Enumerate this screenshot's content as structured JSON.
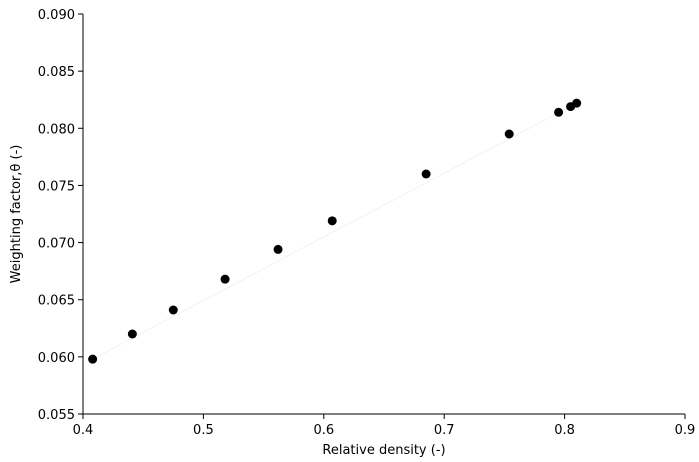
{
  "chart_data": {
    "type": "scatter",
    "title": "",
    "xlabel": "Relative density (-)",
    "ylabel": "Weighting factor,θ (-)",
    "xlim": [
      0.4,
      0.9
    ],
    "ylim": [
      0.055,
      0.09
    ],
    "grid": false,
    "xticks": [
      "0.4",
      "0.5",
      "0.6",
      "0.7",
      "0.8",
      "0.9"
    ],
    "yticks": [
      "0.055",
      "0.060",
      "0.065",
      "0.070",
      "0.075",
      "0.080",
      "0.085",
      "0.090"
    ],
    "series": [
      {
        "color": "#000000",
        "x": [
          0.408,
          0.441,
          0.475,
          0.518,
          0.562,
          0.607,
          0.685,
          0.754,
          0.795,
          0.805,
          0.81
        ],
        "y": [
          0.0598,
          0.062,
          0.0641,
          0.0668,
          0.0694,
          0.0719,
          0.076,
          0.0795,
          0.0814,
          0.0819,
          0.0822
        ]
      }
    ],
    "fit_line": {
      "color": "#f2f2f2",
      "x": [
        0.408,
        0.81
      ],
      "y": [
        0.0598,
        0.0822
      ]
    }
  }
}
